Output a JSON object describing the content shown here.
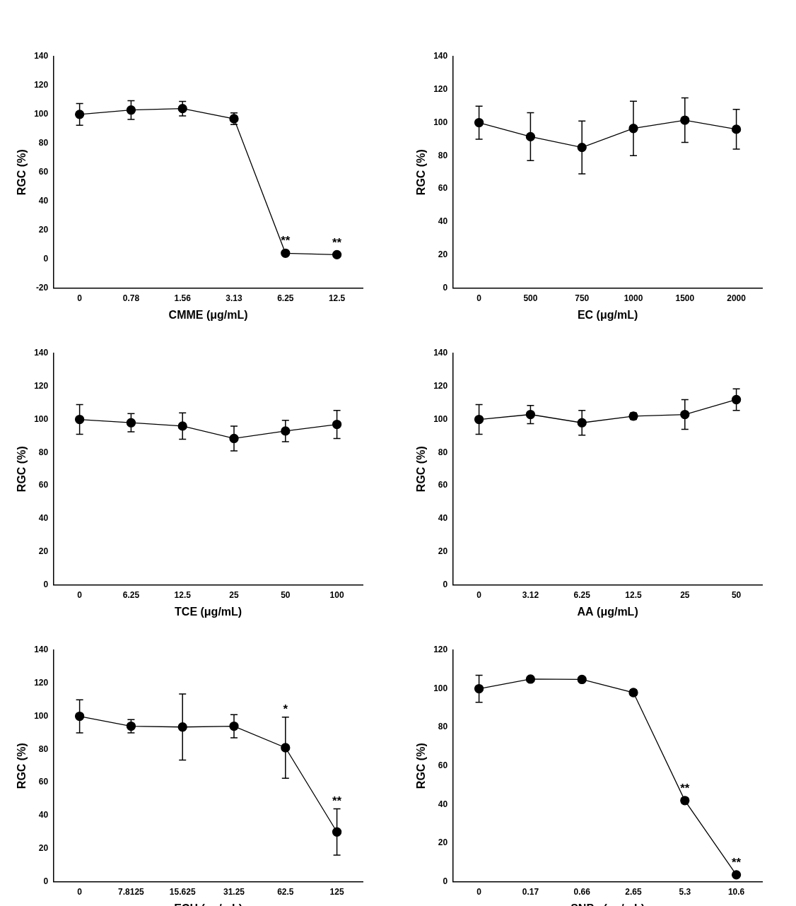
{
  "chart_data": [
    {
      "type": "line",
      "x_label": "CMME (μg/mL)",
      "y_label": "RGC (%)",
      "categories": [
        "0",
        "0.78",
        "1.56",
        "3.13",
        "6.25",
        "12.5"
      ],
      "values": [
        100,
        103,
        104,
        97,
        4,
        3
      ],
      "errors": [
        7.5,
        6.5,
        5,
        4,
        1,
        1
      ],
      "annotations": [
        null,
        null,
        null,
        null,
        "**",
        "**"
      ],
      "ylim": [
        -20,
        140
      ],
      "yticks": [
        -20,
        0,
        20,
        40,
        60,
        80,
        100,
        120,
        140
      ],
      "color": "#000000",
      "marker": "circle",
      "grid": false
    },
    {
      "type": "line",
      "x_label": "EC (μg/mL)",
      "y_label": "RGC (%)",
      "categories": [
        "0",
        "500",
        "750",
        "1000",
        "1500",
        "2000"
      ],
      "values": [
        100,
        91.5,
        85,
        96.5,
        101.5,
        96
      ],
      "errors": [
        10,
        14.5,
        16,
        16.5,
        13.5,
        12
      ],
      "annotations": [
        null,
        null,
        null,
        null,
        null,
        null
      ],
      "ylim": [
        0,
        140
      ],
      "yticks": [
        0,
        20,
        40,
        60,
        80,
        100,
        120,
        140
      ],
      "color": "#000000",
      "marker": "circle",
      "grid": false
    },
    {
      "type": "line",
      "x_label": "TCE (μg/mL)",
      "y_label": "RGC (%)",
      "categories": [
        "0",
        "6.25",
        "12.5",
        "25",
        "50",
        "100"
      ],
      "values": [
        100,
        98,
        96,
        88.5,
        93,
        97
      ],
      "errors": [
        9,
        5.5,
        8,
        7.5,
        6.5,
        8.5
      ],
      "annotations": [
        null,
        null,
        null,
        null,
        null,
        null
      ],
      "ylim": [
        0,
        140
      ],
      "yticks": [
        0,
        20,
        40,
        60,
        80,
        100,
        120,
        140
      ],
      "color": "#000000",
      "marker": "circle",
      "grid": false
    },
    {
      "type": "line",
      "x_label": "AA (μg/mL)",
      "y_label": "RGC (%)",
      "categories": [
        "0",
        "3.12",
        "6.25",
        "12.5",
        "25",
        "50"
      ],
      "values": [
        100,
        103,
        98,
        102,
        103,
        112
      ],
      "errors": [
        9,
        5.5,
        7.5,
        2,
        9,
        6.5
      ],
      "annotations": [
        null,
        null,
        null,
        null,
        null,
        null
      ],
      "ylim": [
        0,
        140
      ],
      "yticks": [
        0,
        20,
        40,
        60,
        80,
        100,
        120,
        140
      ],
      "color": "#000000",
      "marker": "circle",
      "grid": false
    },
    {
      "type": "line",
      "x_label": "ECH (μg/mL)",
      "y_label": "RGC (%)",
      "categories": [
        "0",
        "7.8125",
        "15.625",
        "31.25",
        "62.5",
        "125"
      ],
      "values": [
        100,
        94,
        93.5,
        94,
        81,
        30
      ],
      "errors": [
        10,
        4,
        20,
        7,
        18.5,
        14
      ],
      "annotations": [
        null,
        null,
        null,
        null,
        "*",
        "**"
      ],
      "ylim": [
        0,
        140
      ],
      "yticks": [
        0,
        20,
        40,
        60,
        80,
        100,
        120,
        140
      ],
      "color": "#000000",
      "marker": "circle",
      "grid": false
    },
    {
      "type": "line",
      "x_label": "SNPs (μg/mL)",
      "y_label": "RGC (%)",
      "categories": [
        "0",
        "0.17",
        "0.66",
        "2.65",
        "5.3",
        "10.6"
      ],
      "values": [
        100,
        105,
        104.8,
        98,
        42,
        3.5
      ],
      "errors": [
        7,
        1,
        1,
        1.5,
        1.5,
        1
      ],
      "annotations": [
        null,
        null,
        null,
        null,
        "**",
        "**"
      ],
      "ylim": [
        0,
        120
      ],
      "yticks": [
        0,
        20,
        40,
        60,
        80,
        100,
        120
      ],
      "color": "#000000",
      "marker": "circle",
      "grid": false
    }
  ]
}
